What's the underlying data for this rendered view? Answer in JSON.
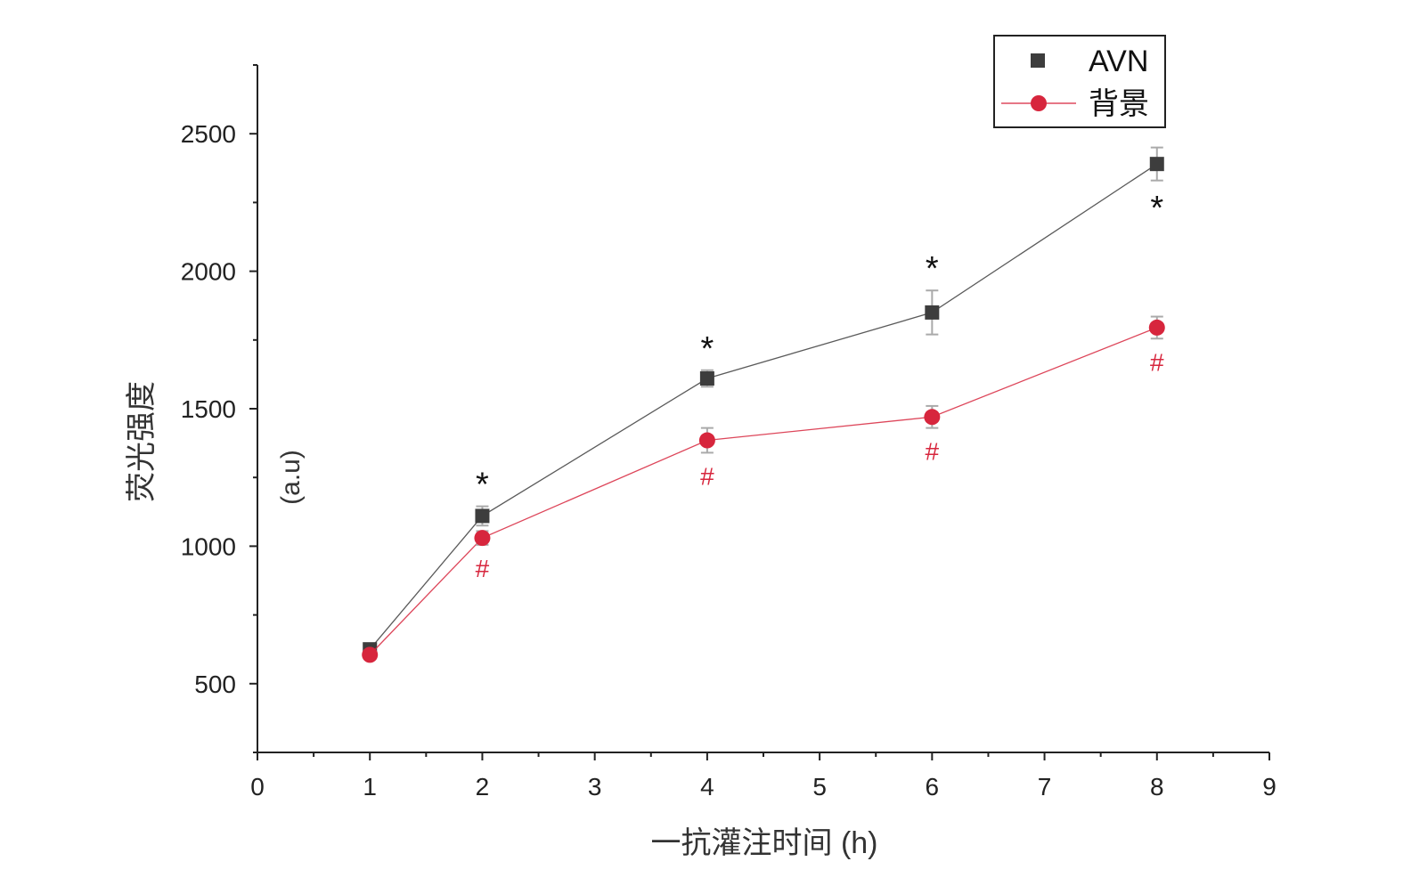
{
  "chart_data": {
    "type": "line",
    "xlabel": "一抗灌注时间 (h)",
    "ylabel": "荧光强度",
    "ylabel_unit": "(a.u)",
    "xlim": [
      0,
      9
    ],
    "ylim": [
      250,
      2750
    ],
    "x_ticks": [
      "0",
      "1",
      "2",
      "3",
      "4",
      "5",
      "6",
      "7",
      "8",
      "9"
    ],
    "y_ticks": [
      "500",
      "1000",
      "1500",
      "2000",
      "2500"
    ],
    "grid": false,
    "legend_position": "top-right",
    "x": [
      1,
      2,
      4,
      6,
      8
    ],
    "series": [
      {
        "name": "AVN",
        "marker": "square",
        "color": "#3d3d3d",
        "values": [
          625,
          1110,
          1610,
          1850,
          2390
        ],
        "errors": [
          20,
          35,
          30,
          80,
          60
        ],
        "annotations": [
          "",
          "*",
          "*",
          "*",
          "*"
        ]
      },
      {
        "name": "背景",
        "marker": "circle",
        "color": "#d7263d",
        "values": [
          605,
          1030,
          1385,
          1470,
          1795
        ],
        "errors": [
          15,
          25,
          45,
          40,
          40
        ],
        "annotations": [
          "",
          "#",
          "#",
          "#",
          "#"
        ]
      }
    ]
  }
}
